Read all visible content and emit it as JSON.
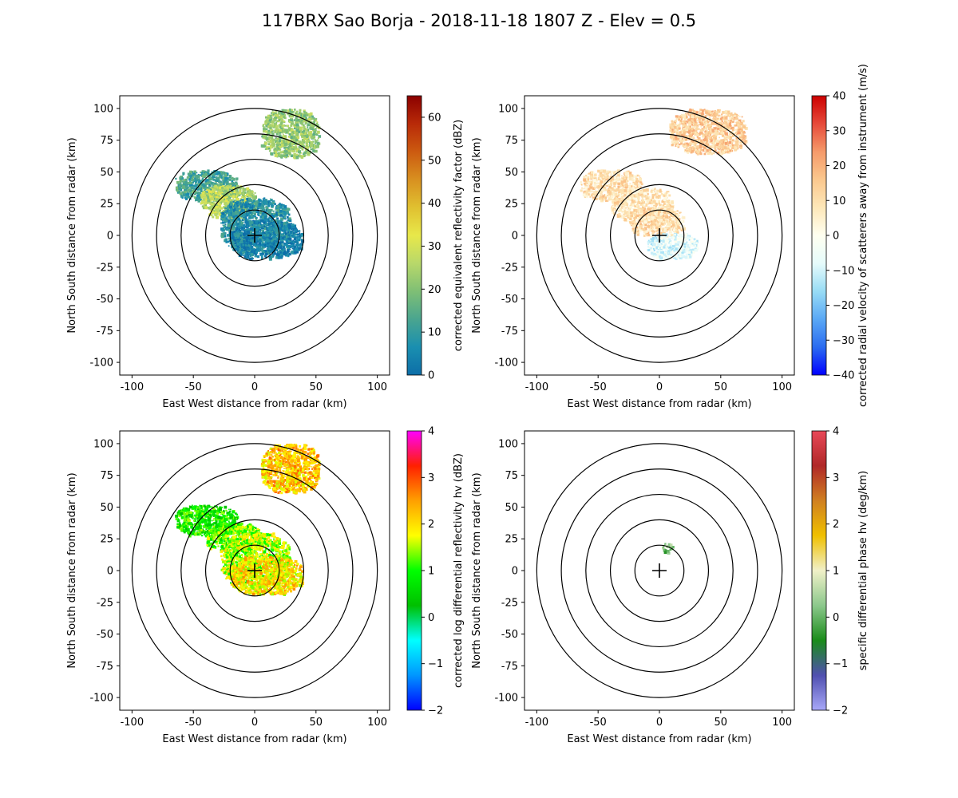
{
  "figure": {
    "title": "117BRX Sao Borja - 2018-11-18 1807 Z -  Elev = 0.5"
  },
  "chart_data": [
    {
      "type": "heatmap",
      "field": "reflectivity",
      "xlabel": "East West distance from radar (km)",
      "ylabel": "North South distance from radar (km)",
      "xlim": [
        -110,
        110
      ],
      "ylim": [
        -110,
        110
      ],
      "xticks": [
        -100,
        -50,
        0,
        50,
        100
      ],
      "yticks": [
        -100,
        -75,
        -50,
        -25,
        0,
        25,
        50,
        75,
        100
      ],
      "range_rings_km": [
        20,
        40,
        60,
        80,
        100
      ],
      "colorbar": {
        "label": "corrected equivalent reflectivity factor (dBZ)",
        "min": 0,
        "max": 65,
        "ticks": [
          0,
          10,
          20,
          30,
          40,
          50,
          60
        ],
        "colors": [
          "#0d6ea8",
          "#1a8fb0",
          "#4aa58f",
          "#7fbf75",
          "#b8d86a",
          "#e8e84a",
          "#e0c030",
          "#d89020",
          "#cc5a10",
          "#b82a08",
          "#8b0000"
        ]
      },
      "echo_regions": [
        {
          "x": [
            5,
            52
          ],
          "y": [
            62,
            100
          ],
          "value": 22
        },
        {
          "x": [
            -65,
            -15
          ],
          "y": [
            28,
            52
          ],
          "value": 12
        },
        {
          "x": [
            -45,
            0
          ],
          "y": [
            15,
            40
          ],
          "value": 26
        },
        {
          "x": [
            -28,
            28
          ],
          "y": [
            -12,
            30
          ],
          "value": 8
        },
        {
          "x": [
            -20,
            38
          ],
          "y": [
            -18,
            12
          ],
          "value": 4
        }
      ]
    },
    {
      "type": "heatmap",
      "field": "velocity",
      "xlabel": "East West distance from radar (km)",
      "ylabel": "North South distance from radar (km)",
      "xlim": [
        -110,
        110
      ],
      "ylim": [
        -110,
        110
      ],
      "xticks": [
        -100,
        -50,
        0,
        50,
        100
      ],
      "yticks": [
        -100,
        -75,
        -50,
        -25,
        0,
        25,
        50,
        75,
        100
      ],
      "range_rings_km": [
        20,
        40,
        60,
        80,
        100
      ],
      "colorbar": {
        "label": "corrected radial velocity of scatterers away from instrument (m/s)",
        "min": -40,
        "max": 40,
        "ticks": [
          -40,
          -30,
          -20,
          -10,
          0,
          10,
          20,
          30,
          40
        ],
        "colors": [
          "#0000ff",
          "#2b6cf0",
          "#5aa8f5",
          "#98dcf5",
          "#e6fbfb",
          "#fffff0",
          "#fde7b8",
          "#fbc88e",
          "#f59a6a",
          "#e64a3a",
          "#cc0000"
        ]
      },
      "echo_regions": [
        {
          "x": [
            8,
            70
          ],
          "y": [
            65,
            100
          ],
          "value": 14
        },
        {
          "x": [
            -65,
            -15
          ],
          "y": [
            28,
            52
          ],
          "value": 10
        },
        {
          "x": [
            -40,
            10
          ],
          "y": [
            12,
            38
          ],
          "value": 8
        },
        {
          "x": [
            -25,
            20
          ],
          "y": [
            0,
            22
          ],
          "value": 10
        },
        {
          "x": [
            -10,
            30
          ],
          "y": [
            -18,
            2
          ],
          "value": -8
        }
      ]
    },
    {
      "type": "heatmap",
      "field": "differential_reflectivity",
      "xlabel": "East West distance from radar (km)",
      "ylabel": "North South distance from radar (km)",
      "xlim": [
        -110,
        110
      ],
      "ylim": [
        -110,
        110
      ],
      "xticks": [
        -100,
        -50,
        0,
        50,
        100
      ],
      "yticks": [
        -100,
        -75,
        -50,
        -25,
        0,
        25,
        50,
        75,
        100
      ],
      "range_rings_km": [
        20,
        40,
        60,
        80,
        100
      ],
      "colorbar": {
        "label": "corrected log differential reflectivity hv (dBZ)",
        "min": -2,
        "max": 4,
        "ticks": [
          -2,
          -1,
          0,
          1,
          2,
          3,
          4
        ],
        "colors": [
          "#0000ff",
          "#0096ff",
          "#00ffff",
          "#00c000",
          "#00ff00",
          "#ffff00",
          "#ffa000",
          "#ff2000",
          "#ff00ff"
        ]
      },
      "echo_regions": [
        {
          "x": [
            5,
            52
          ],
          "y": [
            62,
            100
          ],
          "value": 2.2
        },
        {
          "x": [
            -65,
            -15
          ],
          "y": [
            28,
            52
          ],
          "value": 0.9
        },
        {
          "x": [
            -40,
            5
          ],
          "y": [
            15,
            38
          ],
          "value": 1.2
        },
        {
          "x": [
            -28,
            28
          ],
          "y": [
            -12,
            30
          ],
          "value": 1.5
        },
        {
          "x": [
            -20,
            38
          ],
          "y": [
            -18,
            12
          ],
          "value": 2.0
        }
      ]
    },
    {
      "type": "heatmap",
      "field": "specific_differential_phase",
      "xlabel": "East West distance from radar (km)",
      "ylabel": "North South distance from radar (km)",
      "xlim": [
        -110,
        110
      ],
      "ylim": [
        -110,
        110
      ],
      "xticks": [
        -100,
        -50,
        0,
        50,
        100
      ],
      "yticks": [
        -100,
        -75,
        -50,
        -25,
        0,
        25,
        50,
        75,
        100
      ],
      "range_rings_km": [
        20,
        40,
        60,
        80,
        100
      ],
      "colorbar": {
        "label": "specific differential phase hv (deg/km)",
        "min": -2,
        "max": 4,
        "ticks": [
          -2,
          -1,
          0,
          1,
          2,
          3,
          4
        ],
        "colors": [
          "#a8a8f8",
          "#5050b0",
          "#1a8c1a",
          "#8cc88c",
          "#f0f0c8",
          "#f0c000",
          "#d08020",
          "#b02828",
          "#e84858"
        ]
      },
      "echo_regions": [
        {
          "x": [
            2,
            10
          ],
          "y": [
            15,
            22
          ],
          "value": 0.2
        }
      ]
    }
  ]
}
